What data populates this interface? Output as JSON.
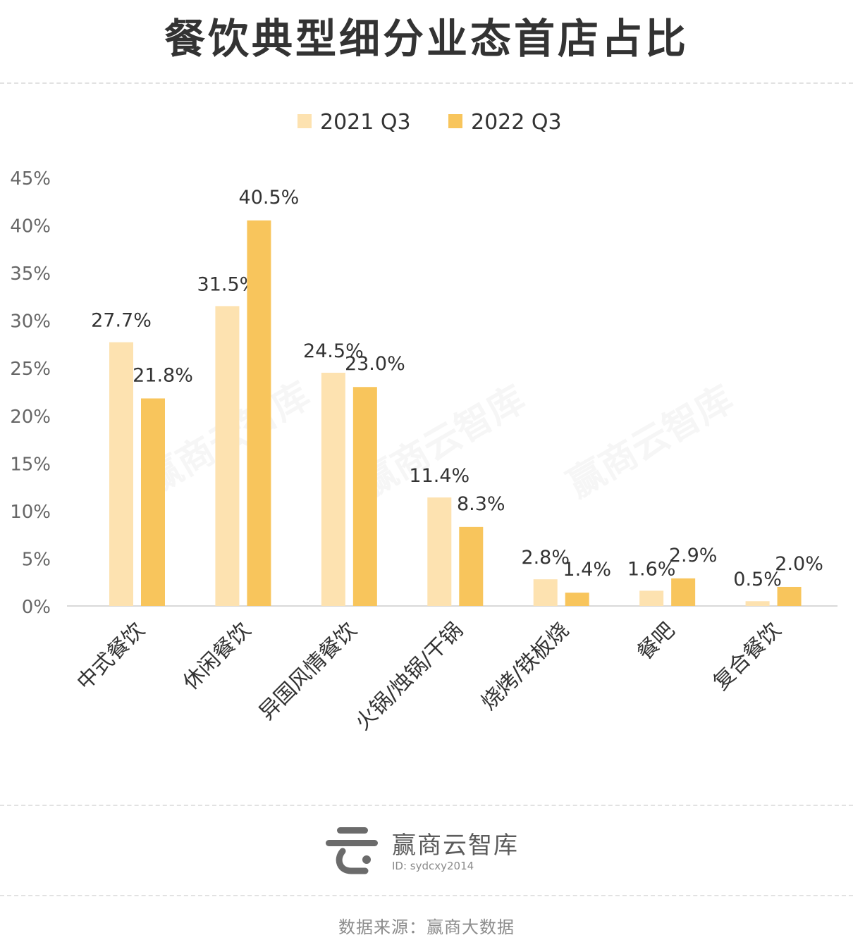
{
  "header": {
    "title": "餐饮典型细分业态首店占比"
  },
  "chart_data": {
    "type": "bar",
    "title": "餐饮典型细分业态首店占比",
    "categories": [
      "中式餐饮",
      "休闲餐饮",
      "异国风情餐饮",
      "火锅/烛锅/干锅",
      "烧烤/铁板烧",
      "餐吧",
      "复合餐饮"
    ],
    "series": [
      {
        "name": "2021 Q3",
        "color": "#fde2b0",
        "values": [
          27.7,
          31.5,
          24.5,
          11.4,
          2.8,
          1.6,
          0.5
        ],
        "labels": [
          "27.7%",
          "31.5%",
          "24.5%",
          "11.4%",
          "2.8%",
          "1.6%",
          "0.5%"
        ]
      },
      {
        "name": "2022 Q3",
        "color": "#f8c55c",
        "values": [
          21.8,
          40.5,
          23.0,
          8.3,
          1.4,
          2.9,
          2.0
        ],
        "labels": [
          "21.8%",
          "40.5%",
          "23.0%",
          "8.3%",
          "1.4%",
          "2.9%",
          "2.0%"
        ]
      }
    ],
    "ylim": [
      0,
      45
    ],
    "yticks": [
      "0%",
      "5%",
      "10%",
      "15%",
      "20%",
      "25%",
      "30%",
      "35%",
      "40%",
      "45%"
    ],
    "legend": "top-center",
    "grid": false
  },
  "watermark": "赢商云智库",
  "logo": {
    "name": "赢商云智库",
    "id": "ID: sydcxy2014"
  },
  "footer": {
    "source": "数据来源：赢商大数据"
  }
}
